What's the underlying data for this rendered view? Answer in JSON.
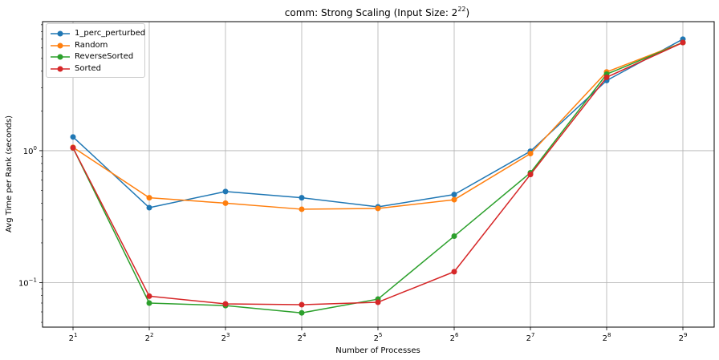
{
  "chart_data": {
    "type": "line",
    "title": "comm: Strong Scaling (Input Size: 2",
    "title_exp": "22",
    "title_suffix": ")",
    "xlabel": "Number of Processes",
    "ylabel": "Avg Time per Rank (seconds)",
    "y_scale": "log",
    "ylim": [
      0.046,
      9.5
    ],
    "x_exponents": [
      1,
      2,
      3,
      4,
      5,
      6,
      7,
      8,
      9
    ],
    "x": [
      2,
      4,
      8,
      16,
      32,
      64,
      128,
      256,
      512
    ],
    "x_tick_base": "2",
    "y_ticks": [
      {
        "value": 0.1,
        "base": "10",
        "exp": "−1"
      },
      {
        "value": 1,
        "base": "10",
        "exp": "0"
      }
    ],
    "grid": true,
    "legend_position": "top-left",
    "series": [
      {
        "name": "1_perc_perturbed",
        "color": "#1f77b4",
        "values": [
          1.27,
          0.37,
          0.49,
          0.44,
          0.375,
          0.465,
          0.99,
          3.4,
          7.0
        ]
      },
      {
        "name": "Random",
        "color": "#ff7f0e",
        "values": [
          1.06,
          0.44,
          0.4,
          0.36,
          0.365,
          0.425,
          0.95,
          3.95,
          6.6
        ]
      },
      {
        "name": "ReverseSorted",
        "color": "#2ca02c",
        "values": [
          1.05,
          0.07,
          0.067,
          0.059,
          0.075,
          0.225,
          0.68,
          3.8,
          6.6
        ]
      },
      {
        "name": "Sorted",
        "color": "#d62728",
        "values": [
          1.05,
          0.079,
          0.069,
          0.068,
          0.071,
          0.121,
          0.66,
          3.6,
          6.6
        ]
      }
    ]
  }
}
